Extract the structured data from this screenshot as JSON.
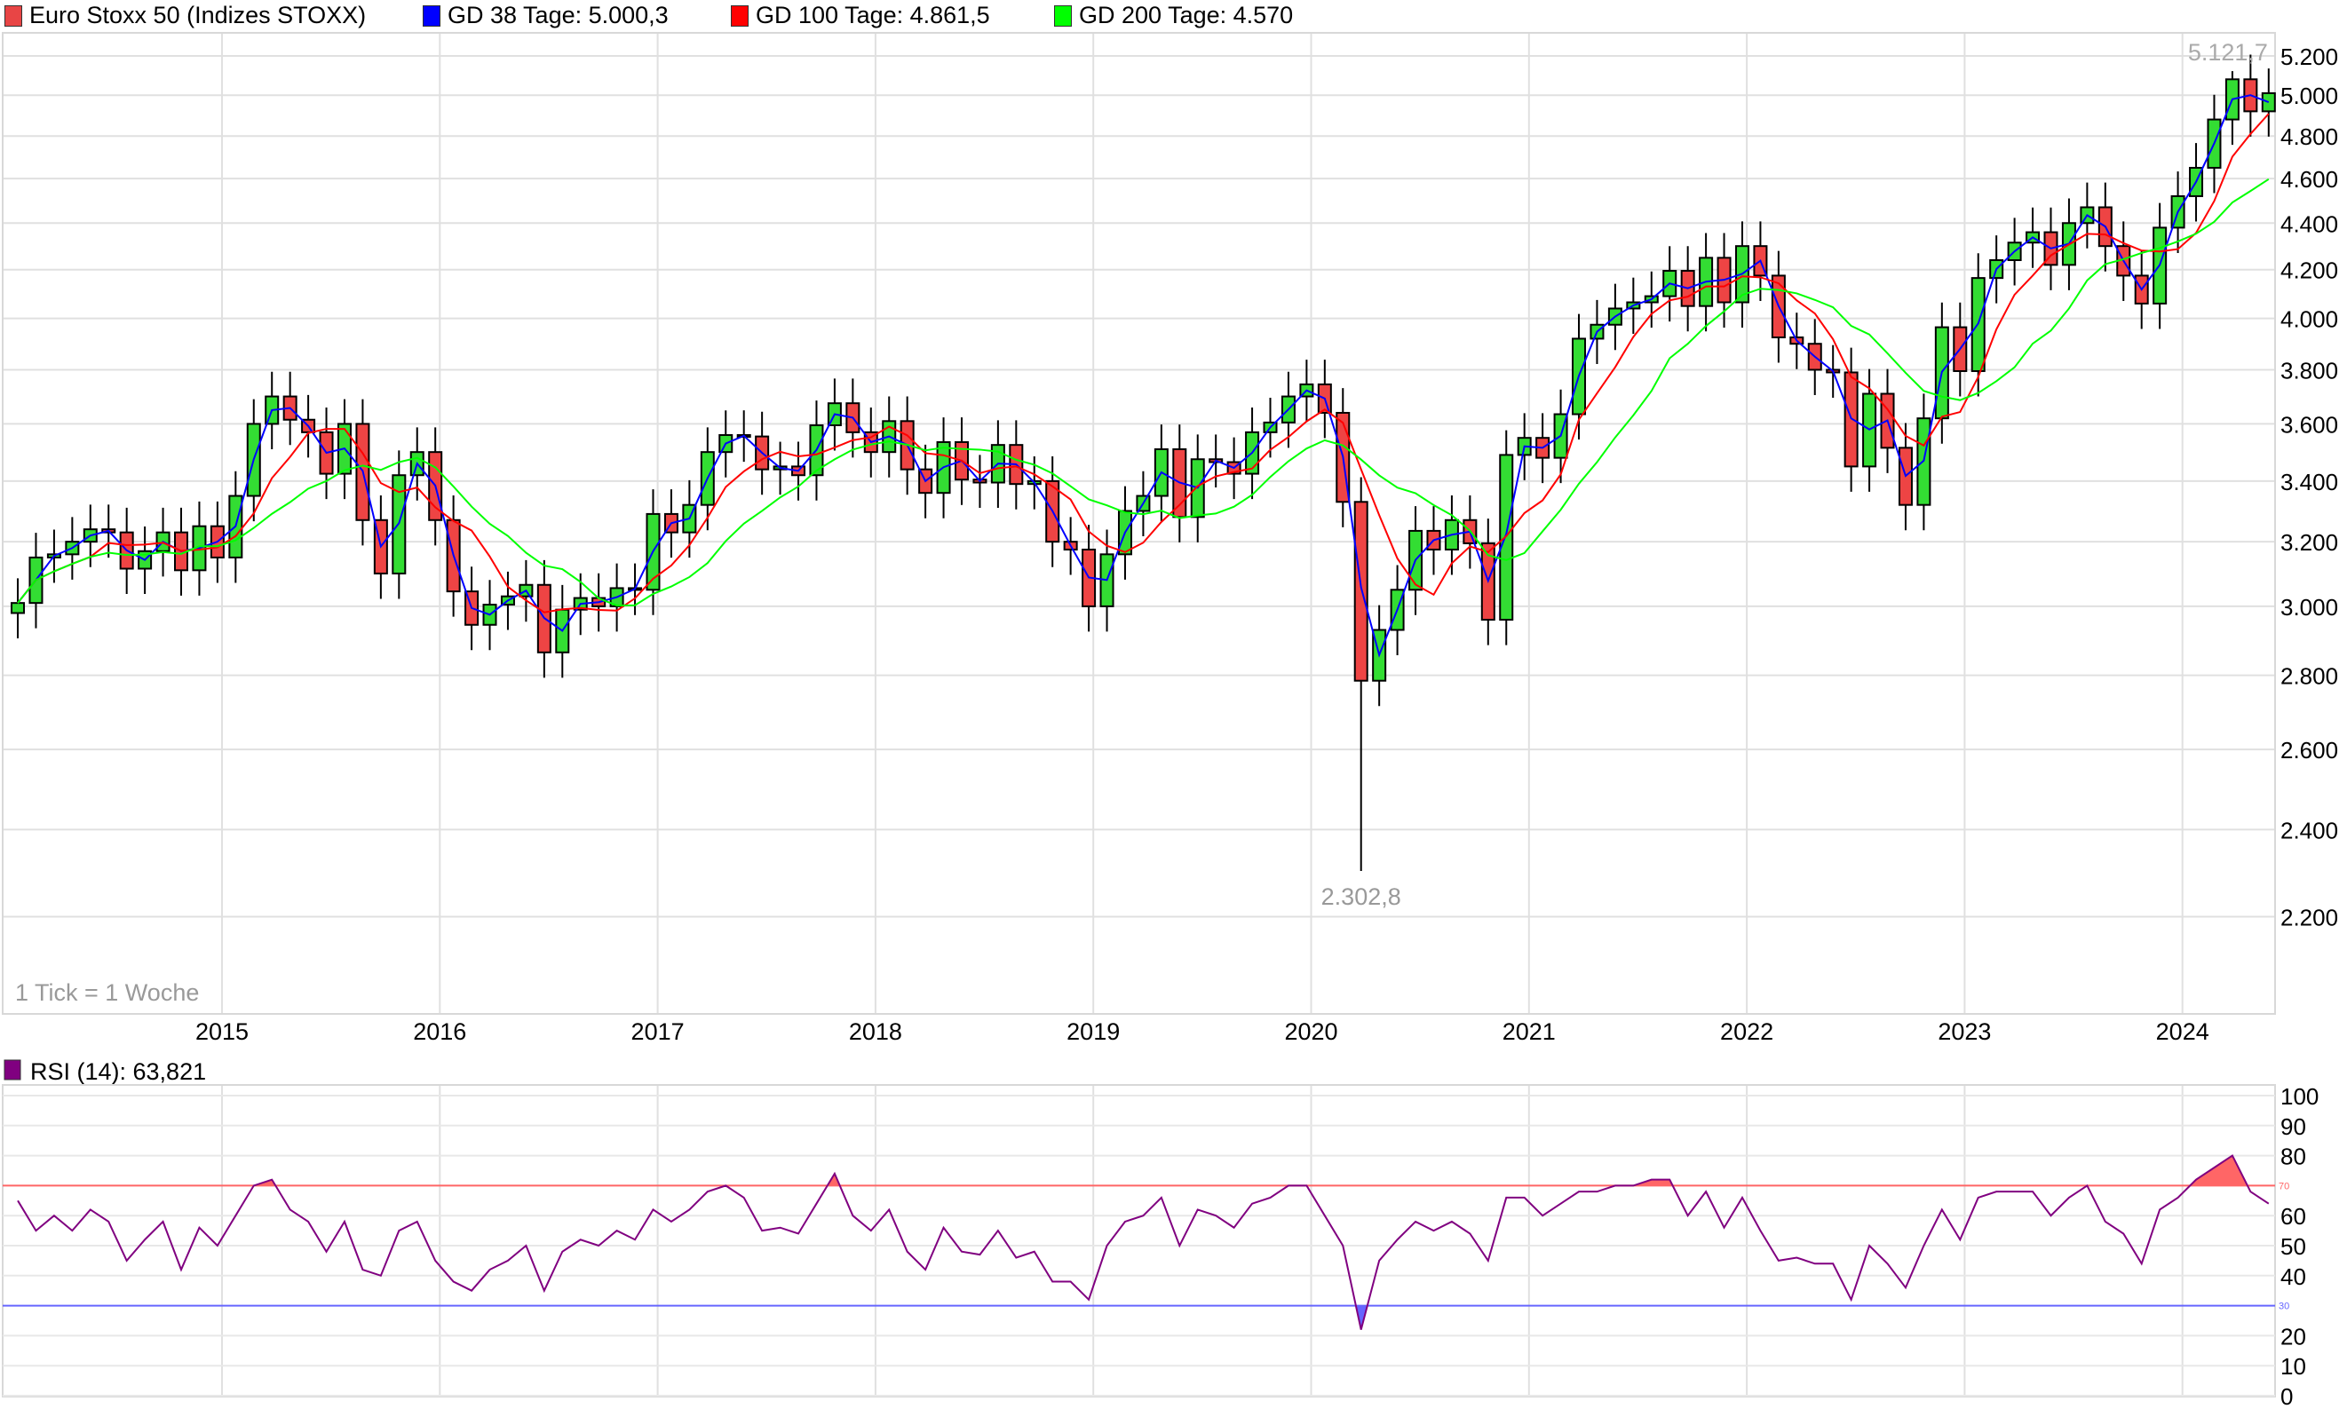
{
  "legend": {
    "main": {
      "label": "Euro Stoxx 50 (Indizes STOXX)",
      "color": "#e84545"
    },
    "ma38": {
      "label": "GD 38 Tage: 5.000,3",
      "color": "#0000ff"
    },
    "ma100": {
      "label": "GD 100 Tage: 4.861,5",
      "color": "#ff0000"
    },
    "ma200": {
      "label": "GD 200 Tage: 4.570",
      "color": "#00ff00"
    }
  },
  "tick_note": "1 Tick = 1 Woche",
  "rsi_legend": {
    "label": "RSI (14): 63,821",
    "color": "#800080"
  },
  "chart_data": [
    {
      "type": "candlestick",
      "scale": "log",
      "grid": true,
      "legend_placement": "top-left",
      "ylim": [
        2000,
        5350
      ],
      "y_ticks": [
        "5.200",
        "5.000",
        "4.800",
        "4.600",
        "4.400",
        "4.200",
        "4.000",
        "3.800",
        "3.600",
        "3.400",
        "3.200",
        "3.000",
        "2.800",
        "2.600",
        "2.400",
        "2.200"
      ],
      "y_tick_values": [
        5200,
        5000,
        4800,
        4600,
        4400,
        4200,
        4000,
        3800,
        3600,
        3400,
        3200,
        3000,
        2800,
        2600,
        2400,
        2200
      ],
      "x_ticks": [
        "2015",
        "2016",
        "2017",
        "2018",
        "2019",
        "2020",
        "2021",
        "2022",
        "2023",
        "2024"
      ],
      "start": "2014-01",
      "closes": [
        3010,
        3150,
        3160,
        3200,
        3240,
        3230,
        3115,
        3170,
        3230,
        3110,
        3250,
        3150,
        3350,
        3600,
        3700,
        3615,
        3570,
        3425,
        3600,
        3270,
        3100,
        3420,
        3500,
        3270,
        3045,
        2945,
        3005,
        3030,
        3065,
        2865,
        2990,
        3025,
        3000,
        3055,
        3050,
        3290,
        3230,
        3320,
        3500,
        3560,
        3555,
        3440,
        3450,
        3420,
        3595,
        3675,
        3570,
        3500,
        3610,
        3440,
        3360,
        3535,
        3405,
        3395,
        3525,
        3390,
        3400,
        3200,
        3175,
        3000,
        3160,
        3300,
        3350,
        3510,
        3280,
        3475,
        3465,
        3425,
        3570,
        3605,
        3700,
        3745,
        3640,
        3330,
        2785,
        2930,
        3050,
        3235,
        3175,
        3270,
        3195,
        2960,
        3490,
        3550,
        3480,
        3635,
        3920,
        3975,
        4040,
        4065,
        4090,
        4195,
        4050,
        4250,
        4065,
        4300,
        4175,
        3925,
        3900,
        3800,
        3790,
        3450,
        3710,
        3515,
        3320,
        3620,
        3965,
        3795,
        4165,
        4240,
        4315,
        4360,
        4220,
        4400,
        4470,
        4300,
        4175,
        4060,
        4380,
        4520,
        4650,
        4880,
        5080,
        4920,
        5010
      ],
      "annotations": [
        {
          "label": "5.121,7",
          "value": 5121.7,
          "date": "2024-03",
          "kind": "high"
        },
        {
          "label": "2.302,8",
          "value": 2302.8,
          "date": "2020-03",
          "kind": "low"
        }
      ],
      "series": [
        {
          "name": "GD 38 Tage",
          "color": "#0000ff",
          "last": 5000.3
        },
        {
          "name": "GD 100 Tage",
          "color": "#ff0000",
          "last": 4861.5
        },
        {
          "name": "GD 200 Tage",
          "color": "#00ff00",
          "last": 4570
        }
      ],
      "up_color": "#33dd33",
      "down_color": "#ee4444"
    },
    {
      "type": "line",
      "name": "RSI (14)",
      "color": "#800080",
      "ylim": [
        0,
        100
      ],
      "y_ticks": [
        "100",
        "90",
        "80",
        "60",
        "50",
        "40",
        "20",
        "10",
        "0"
      ],
      "y_tick_values": [
        100,
        90,
        80,
        60,
        50,
        40,
        20,
        10,
        0
      ],
      "levels": [
        {
          "label": "70",
          "value": 70,
          "color": "#ff6666"
        },
        {
          "label": "30",
          "value": 30,
          "color": "#6666ff"
        }
      ],
      "values": [
        65,
        55,
        60,
        55,
        62,
        58,
        45,
        52,
        58,
        42,
        56,
        50,
        60,
        70,
        72,
        62,
        58,
        48,
        58,
        42,
        40,
        55,
        58,
        45,
        38,
        35,
        42,
        45,
        50,
        35,
        48,
        52,
        50,
        55,
        52,
        62,
        58,
        62,
        68,
        70,
        66,
        55,
        56,
        54,
        64,
        74,
        60,
        55,
        62,
        48,
        42,
        56,
        48,
        47,
        55,
        46,
        48,
        38,
        38,
        32,
        50,
        58,
        60,
        66,
        50,
        62,
        60,
        56,
        64,
        66,
        70,
        70,
        60,
        50,
        22,
        45,
        52,
        58,
        55,
        58,
        54,
        45,
        66,
        66,
        60,
        64,
        68,
        68,
        70,
        70,
        72,
        72,
        60,
        68,
        56,
        66,
        55,
        45,
        46,
        44,
        44,
        32,
        50,
        44,
        36,
        50,
        62,
        52,
        66,
        68,
        68,
        68,
        60,
        66,
        70,
        58,
        54,
        44,
        62,
        66,
        72,
        76,
        80,
        68,
        64
      ]
    }
  ]
}
